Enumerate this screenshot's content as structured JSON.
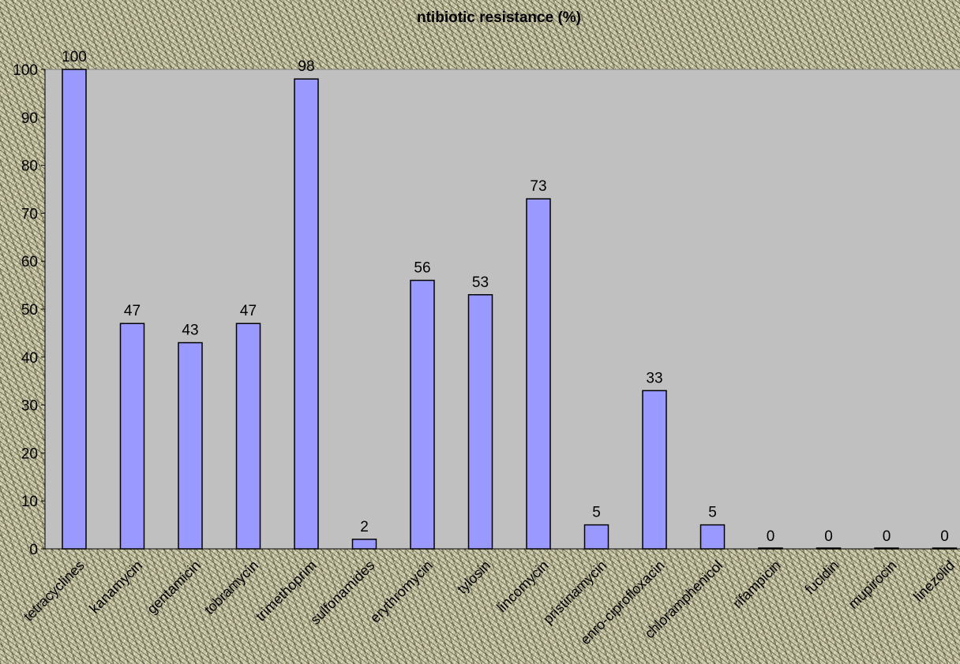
{
  "chart_data": {
    "type": "bar",
    "title": "ntibiotic resistance (%)",
    "xlabel": "",
    "ylabel": "",
    "ylim": [
      0,
      100
    ],
    "yticks": [
      0,
      10,
      20,
      30,
      40,
      50,
      60,
      70,
      80,
      90,
      100
    ],
    "grid": false,
    "legend": "none",
    "categories": [
      "tetracyclines",
      "kanamycin",
      "gentamicin",
      "tobramycin",
      "trimethoprim",
      "sulfonamides",
      "erythromycin",
      "tylosin",
      "lincomycin",
      "pristinamycin",
      "enro-ciprofloxacin",
      "chloramphenicol",
      "rifampicin",
      "fucidin",
      "mupirocin",
      "linezolid"
    ],
    "values": [
      100,
      47,
      43,
      47,
      98,
      2,
      56,
      53,
      73,
      5,
      33,
      5,
      0,
      0,
      0,
      0
    ],
    "value_labels": [
      "100",
      "47",
      "43",
      "47",
      "98",
      "2",
      "56",
      "53",
      "73",
      "5",
      "33",
      "5",
      "0",
      "0",
      "0",
      "0"
    ],
    "colors": {
      "bar": "#9999ff",
      "plot_area": "#c0c0c0",
      "outline": "#000000"
    }
  }
}
